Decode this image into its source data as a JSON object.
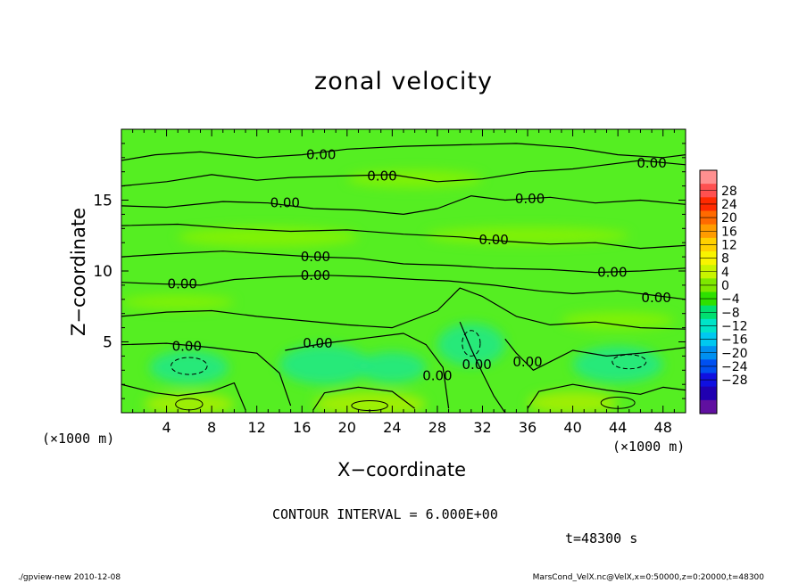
{
  "chart_data": {
    "type": "heatmap",
    "title": "zonal velocity",
    "xlabel": "X−coordinate",
    "ylabel": "Z−coordinate",
    "x_unit_left": "(×1000 m)",
    "x_unit_right": "(×1000 m)",
    "xlim": [
      0,
      50
    ],
    "ylim": [
      0,
      20
    ],
    "x_ticks": [
      "4",
      "8",
      "12",
      "16",
      "20",
      "24",
      "28",
      "32",
      "36",
      "40",
      "44",
      "48"
    ],
    "y_ticks": [
      "5",
      "10",
      "15"
    ],
    "contour_interval_text": "CONTOUR INTERVAL = 6.000E+00",
    "contour_levels_labeled": [
      "0.00"
    ],
    "contour_labels": [
      {
        "text": "0.00",
        "x": 17.7,
        "y": 18.2
      },
      {
        "text": "0.00",
        "x": 23.1,
        "y": 16.7
      },
      {
        "text": "0.00",
        "x": 47.0,
        "y": 17.6
      },
      {
        "text": "0.00",
        "x": 14.5,
        "y": 14.8
      },
      {
        "text": "0.00",
        "x": 36.2,
        "y": 15.1
      },
      {
        "text": "0.00",
        "x": 33.0,
        "y": 12.2
      },
      {
        "text": "0.00",
        "x": 17.2,
        "y": 11.0
      },
      {
        "text": "0.00",
        "x": 5.4,
        "y": 9.1
      },
      {
        "text": "0.00",
        "x": 17.2,
        "y": 9.7
      },
      {
        "text": "0.00",
        "x": 43.5,
        "y": 9.9
      },
      {
        "text": "0.00",
        "x": 47.4,
        "y": 8.1
      },
      {
        "text": "0.00",
        "x": 5.8,
        "y": 4.7
      },
      {
        "text": "0.00",
        "x": 17.4,
        "y": 4.9
      },
      {
        "text": "0.00",
        "x": 28.0,
        "y": 2.6
      },
      {
        "text": "0.00",
        "x": 31.5,
        "y": 3.4
      },
      {
        "text": "0.00",
        "x": 36.0,
        "y": 3.6
      }
    ],
    "colorbar": {
      "levels": [
        "28",
        "24",
        "20",
        "16",
        "12",
        "8",
        "4",
        "0",
        "−4",
        "−8",
        "−12",
        "−16",
        "−20",
        "−24",
        "−28"
      ],
      "colors": [
        "#ff9090",
        "#ff5050",
        "#ff2a00",
        "#ff6a00",
        "#ff9c00",
        "#ffd000",
        "#f8f400",
        "#c8f400",
        "#7ee800",
        "#2ee000",
        "#00e070",
        "#00e4c8",
        "#00c8f0",
        "#0090f0",
        "#0050f0",
        "#1010e0",
        "#2000b0",
        "#6010a0"
      ]
    },
    "field_colors": {
      "base": "#55ee22",
      "low": "#88f200",
      "positive": "#aaee00",
      "negative": "#22e888"
    }
  },
  "annotations": {
    "time": "t=48300 s",
    "footer_left": "./gpview-new  2010-12-08",
    "footer_right": "MarsCond_VelX.nc@VelX,x=0:50000,z=0:20000,t=48300"
  }
}
